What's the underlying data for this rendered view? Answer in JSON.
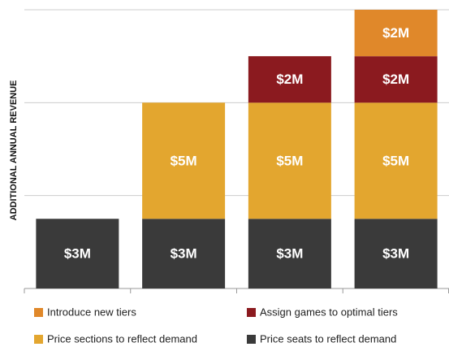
{
  "chart_data": {
    "type": "bar",
    "stacked": true,
    "ylabel": "ADDITIONAL ANNUAL REVENUE",
    "categories": [
      null,
      null,
      null,
      null
    ],
    "series": [
      {
        "name": "Introduce new tiers",
        "color": "#e0882a",
        "values": [
          null,
          null,
          null,
          2
        ],
        "value_labels": [
          null,
          null,
          null,
          "$2M"
        ]
      },
      {
        "name": "Assign games to optimal tiers",
        "color": "#8b1a1f",
        "values": [
          null,
          null,
          2,
          2
        ],
        "value_labels": [
          null,
          null,
          "$2M",
          "$2M"
        ]
      },
      {
        "name": "Price sections to reflect demand",
        "color": "#e3a62f",
        "values": [
          null,
          5,
          5,
          5
        ],
        "value_labels": [
          null,
          "$5M",
          "$5M",
          "$5M"
        ]
      },
      {
        "name": "Price seats to reflect demand",
        "color": "#3a3a3a",
        "values": [
          3,
          3,
          3,
          3
        ],
        "value_labels": [
          "$3M",
          "$3M",
          "$3M",
          "$3M"
        ]
      }
    ],
    "ylim": [
      0,
      12
    ],
    "yticks": [
      0,
      4,
      8,
      12
    ],
    "grid": true
  }
}
